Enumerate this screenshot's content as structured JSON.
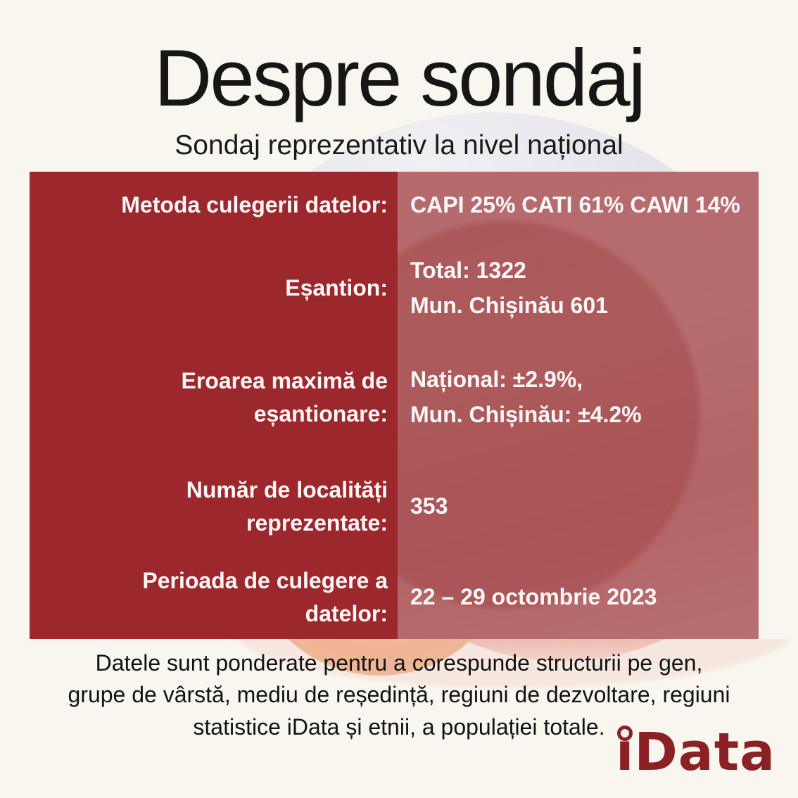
{
  "header": {
    "title": "Despre sondaj",
    "subtitle": "Sondaj reprezentativ la nivel național"
  },
  "table": {
    "colors": {
      "label_column_bg": "#9c272c",
      "value_column_bg": "#b3676a",
      "text": "#fdf8f7"
    },
    "rows": [
      {
        "label_lines": [
          "Metoda culegerii datelor:"
        ],
        "value_lines": [
          "CAPI 25% CATI 61% CAWI 14%"
        ]
      },
      {
        "label_lines": [
          "Eșantion:"
        ],
        "value_lines": [
          "Total: 1322",
          "Mun. Chișinău 601"
        ]
      },
      {
        "label_lines": [
          "Eroarea maximă de",
          "eșantionare:"
        ],
        "value_lines": [
          "Național: ±2.9%,",
          "Mun. Chișinău: ±4.2%"
        ]
      },
      {
        "label_lines": [
          "Număr de localități",
          "reprezentate:"
        ],
        "value_lines": [
          "353"
        ]
      },
      {
        "label_lines": [
          "Perioada de culegere a",
          "datelor:"
        ],
        "value_lines": [
          "22 – 29 octombrie 2023"
        ]
      }
    ]
  },
  "footer": {
    "note_lines": [
      "Datele sunt ponderate pentru a corespunde structurii pe gen,",
      "grupe de vârstă, mediu de reședință, regiuni de dezvoltare, regiuni",
      "statistice iData și etnii, a populației totale."
    ]
  },
  "logo": {
    "text": "iData",
    "display_i": "ı",
    "display_rest": "Data",
    "color": "#8b2025"
  },
  "page_colors": {
    "background": "#f8f6ee",
    "lavender_circle": "#c5c4da",
    "peach_circle": "#eeb494",
    "pink_circle": "#f0c0b4"
  }
}
